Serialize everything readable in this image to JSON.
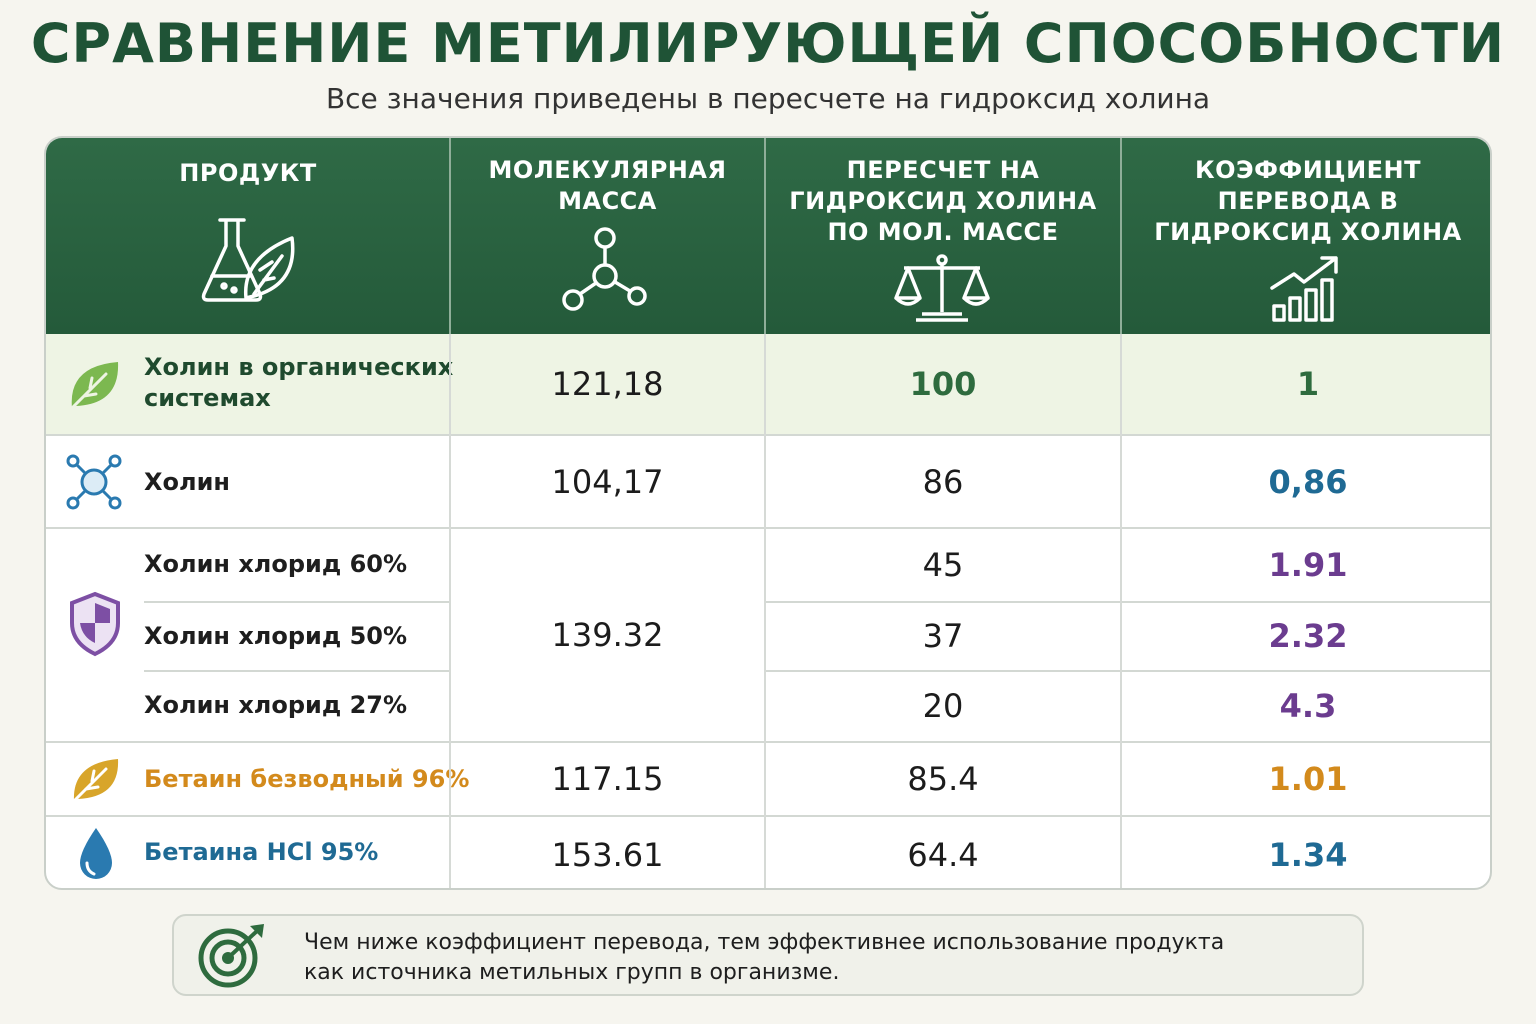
{
  "title": "СРАВНЕНИЕ МЕТИЛИРУЮЩЕЙ СПОСОБНОСТИ",
  "subtitle": "Все значения приведены в пересчете на гидроксид холина",
  "columns": [
    {
      "line1": "ПРОДУКТ",
      "line2": "",
      "line3": "",
      "icon": "flask-leaf-icon"
    },
    {
      "line1": "МОЛЕКУЛЯРНАЯ",
      "line2": "МАССА",
      "line3": "",
      "icon": "molecule-icon"
    },
    {
      "line1": "ПЕРЕСЧЕТ НА",
      "line2": "ГИДРОКСИД ХОЛИНА",
      "line3": "ПО МОЛ. МАССЕ",
      "icon": "scales-icon"
    },
    {
      "line1": "КОЭФФИЦИЕНТ",
      "line2": "ПЕРЕВОДА В",
      "line3": "ГИДРОКСИД ХОЛИНА",
      "icon": "growth-chart-icon"
    }
  ],
  "rows": [
    {
      "name_line1": "Холин в органических",
      "name_line2": "системах",
      "mass": "121,18",
      "conversion": "100",
      "coefficient": "1",
      "icon": "leaf-icon",
      "color": "#2e6b3e"
    },
    {
      "name_line1": "Холин",
      "name_line2": "",
      "mass": "104,17",
      "conversion": "86",
      "coefficient": "0,86",
      "icon": "molecule-node-icon",
      "color": "#1f6a94"
    },
    {
      "name_line1": "Холин хлорид 60%",
      "name_line2": "",
      "mass": "139.32",
      "conversion": "45",
      "coefficient": "1.91",
      "icon": "shield-icon",
      "color": "#6b3c8f"
    },
    {
      "name_line1": "Холин хлорид 50%",
      "name_line2": "",
      "mass": "",
      "conversion": "37",
      "coefficient": "2.32",
      "icon": "",
      "color": "#6b3c8f"
    },
    {
      "name_line1": "Холин хлорид 27%",
      "name_line2": "",
      "mass": "",
      "conversion": "20",
      "coefficient": "4.3",
      "icon": "",
      "color": "#6b3c8f"
    },
    {
      "name_line1": "Бетаин безводный 96%",
      "name_line2": "",
      "mass": "117.15",
      "conversion": "85.4",
      "coefficient": "1.01",
      "icon": "gold-leaf-icon",
      "color": "#d38a1c"
    },
    {
      "name_line1": "Бетаина HCl 95%",
      "name_line2": "",
      "mass": "153.61",
      "conversion": "64.4",
      "coefficient": "1.34",
      "icon": "water-drop-icon",
      "color": "#1f6a94"
    }
  ],
  "note": {
    "line1": "Чем ниже коэффициент перевода, тем эффективнее использование продукта",
    "line2": "как источника метильных групп в организме.",
    "icon": "target-icon"
  }
}
